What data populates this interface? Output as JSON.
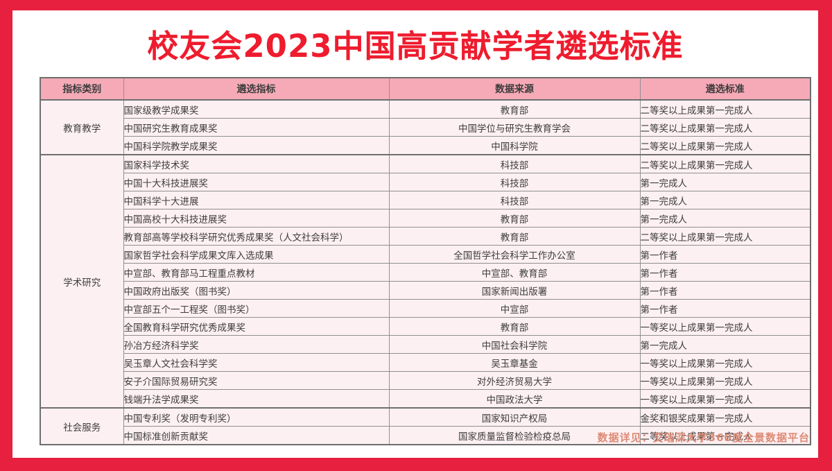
{
  "page": {
    "title": "校友会2023中国高贡献学者遴选标准",
    "footer_note": "数据详见：艾瑞深大学360度全景数据平台"
  },
  "colors": {
    "frame_red": "#e6203e",
    "title_red": "#ee1c2e",
    "header_pink": "#f6aab7",
    "row_pink": "#fdf0f2",
    "border_gray": "#8f8f8f",
    "border_dark": "#6e6e6e",
    "body_text": "#3d3d3d",
    "footer_salmon": "#dc8a74"
  },
  "table": {
    "headers": [
      "指标类别",
      "遴选指标",
      "数据来源",
      "遴选标准"
    ],
    "sections": [
      {
        "category": "教育教学",
        "rows": [
          [
            "国家级教学成果奖",
            "教育部",
            "二等奖以上成果第一完成人"
          ],
          [
            "中国研究生教育成果奖",
            "中国学位与研究生教育学会",
            "二等奖以上成果第一完成人"
          ],
          [
            "中国科学院教学成果奖",
            "中国科学院",
            "二等奖以上成果第一完成人"
          ]
        ]
      },
      {
        "category": "学术研究",
        "rows": [
          [
            "国家科学技术奖",
            "科技部",
            "二等奖以上成果第一完成人"
          ],
          [
            "中国十大科技进展奖",
            "科技部",
            "第一完成人"
          ],
          [
            "中国科学十大进展",
            "科技部",
            "第一完成人"
          ],
          [
            "中国高校十大科技进展奖",
            "教育部",
            "第一完成人"
          ],
          [
            "教育部高等学校科学研究优秀成果奖（人文社会科学）",
            "教育部",
            "二等奖以上成果第一完成人"
          ],
          [
            "国家哲学社会科学成果文库入选成果",
            "全国哲学社会科学工作办公室",
            "第一作者"
          ],
          [
            "中宣部、教育部马工程重点教材",
            "中宣部、教育部",
            "第一作者"
          ],
          [
            "中国政府出版奖（图书奖）",
            "国家新闻出版署",
            "第一作者"
          ],
          [
            "中宣部五个一工程奖（图书奖）",
            "中宣部",
            "第一作者"
          ],
          [
            "全国教育科学研究优秀成果奖",
            "教育部",
            "一等奖以上成果第一完成人"
          ],
          [
            "孙冶方经济科学奖",
            "中国社会科学院",
            "第一完成人"
          ],
          [
            "吴玉章人文社会科学奖",
            "吴玉章基金",
            "一等奖以上成果第一完成人"
          ],
          [
            "安子介国际贸易研究奖",
            "对外经济贸易大学",
            "一等奖以上成果第一完成人"
          ],
          [
            "钱端升法学成果奖",
            "中国政法大学",
            "一等奖以上成果第一完成人"
          ]
        ]
      },
      {
        "category": "社会服务",
        "rows": [
          [
            "中国专利奖（发明专利奖）",
            "国家知识产权局",
            "金奖和银奖成果第一完成人"
          ],
          [
            "中国标准创新贡献奖",
            "国家质量监督检验检疫总局",
            "二等奖以上成果第一完成人"
          ]
        ]
      }
    ]
  }
}
